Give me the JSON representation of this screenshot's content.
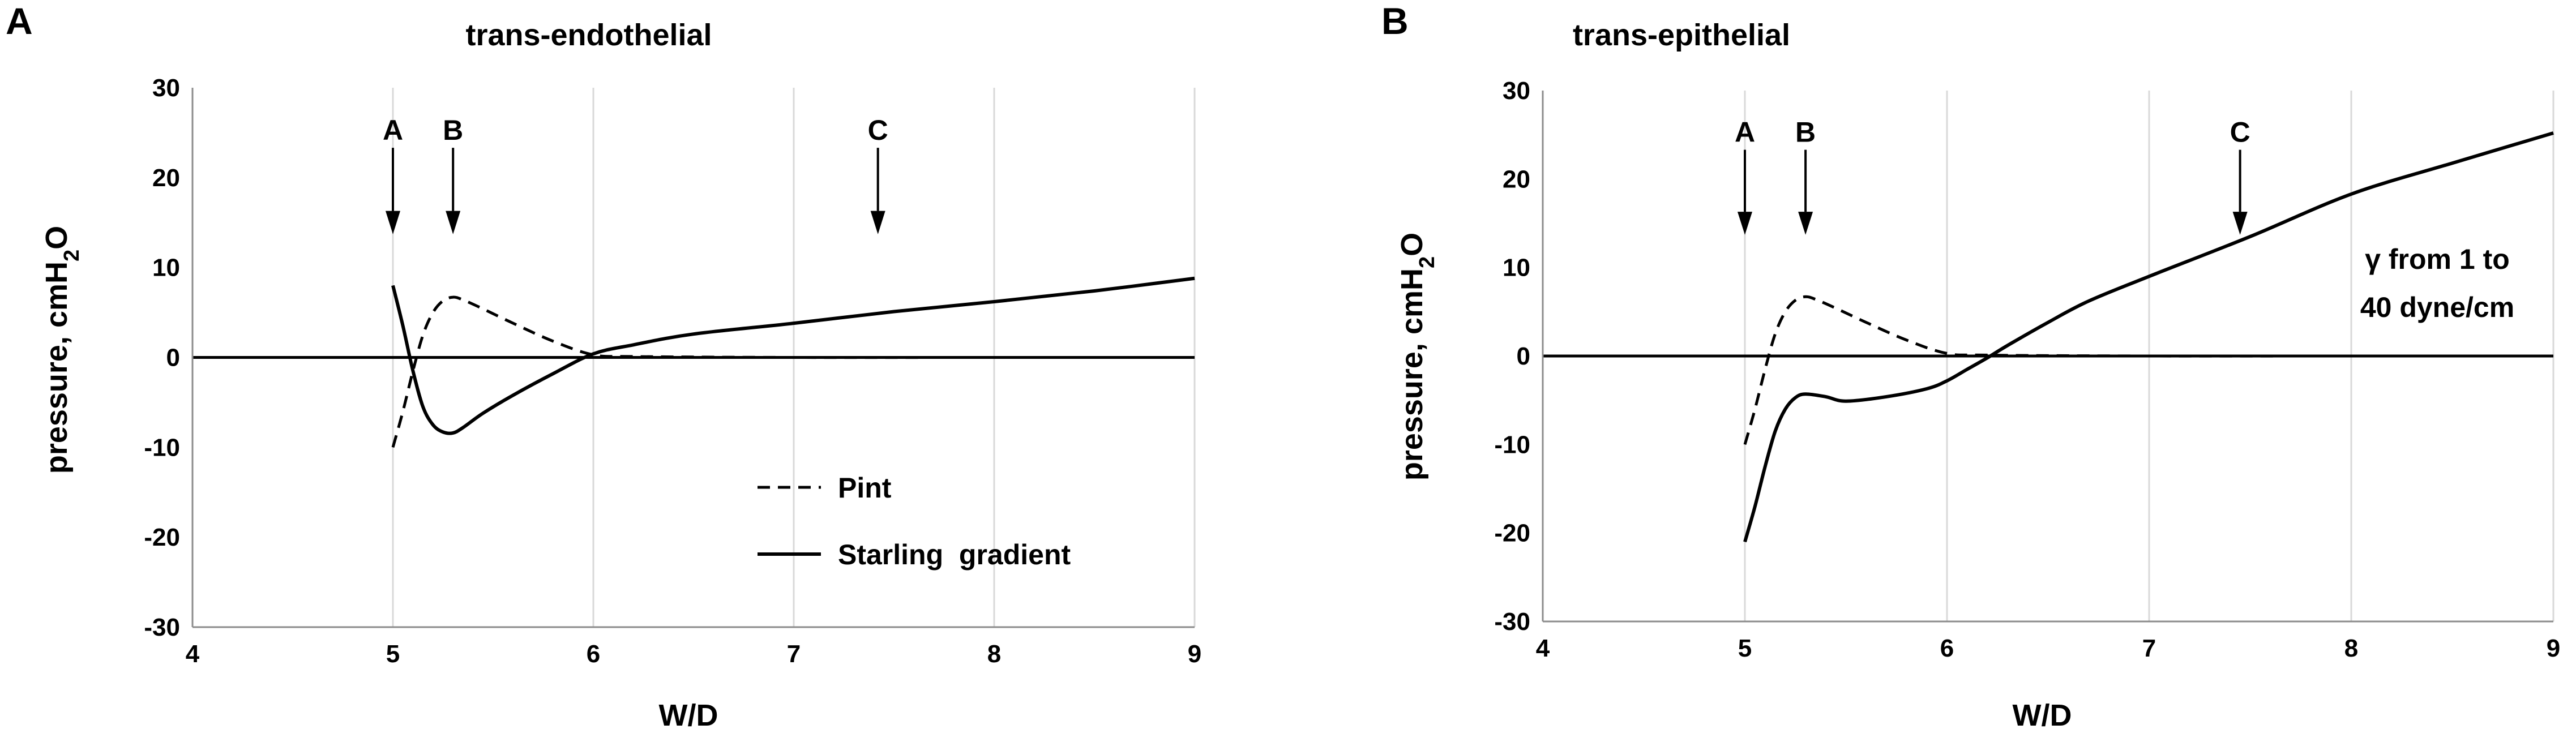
{
  "chart_data": [
    {
      "type": "line",
      "panel_label": "A",
      "title": "trans-endothelial",
      "xlabel": "W/D",
      "ylabel": "pressure, cmH2O",
      "xlim": [
        4,
        9
      ],
      "ylim": [
        -30,
        30
      ],
      "x_ticks": [
        4,
        5,
        6,
        7,
        8,
        9
      ],
      "y_ticks": [
        -30,
        -20,
        -10,
        0,
        10,
        20,
        30
      ],
      "grid": "vertical",
      "legend_placement": "bottom-right",
      "markers": [
        {
          "label": "A",
          "x": 5.0
        },
        {
          "label": "B",
          "x": 5.3
        },
        {
          "label": "C",
          "x": 7.42
        }
      ],
      "series": [
        {
          "name": "Pint",
          "style": "dashed",
          "x": [
            5.0,
            5.05,
            5.1,
            5.15,
            5.2,
            5.25,
            5.3,
            5.35,
            5.45,
            5.6,
            5.8,
            6.0,
            6.2,
            7.0,
            8.0,
            9.0
          ],
          "y": [
            -10.0,
            -6.0,
            -1.5,
            2.5,
            5.0,
            6.3,
            6.7,
            6.4,
            5.4,
            3.8,
            1.8,
            0.3,
            0.1,
            0.0,
            0.0,
            0.0
          ]
        },
        {
          "name": "Starling  gradient",
          "style": "solid",
          "x": [
            5.0,
            5.05,
            5.1,
            5.15,
            5.2,
            5.25,
            5.3,
            5.35,
            5.45,
            5.6,
            5.8,
            6.0,
            6.2,
            6.5,
            7.0,
            7.5,
            8.0,
            8.5,
            9.0
          ],
          "y": [
            8.0,
            3.5,
            -1.5,
            -5.5,
            -7.5,
            -8.3,
            -8.4,
            -7.8,
            -6.2,
            -4.2,
            -1.8,
            0.4,
            1.4,
            2.6,
            3.8,
            5.1,
            6.2,
            7.4,
            8.8
          ]
        }
      ]
    },
    {
      "type": "line",
      "panel_label": "B",
      "title": "trans-epithelial",
      "xlabel": "W/D",
      "ylabel": "pressure, cmH2O",
      "xlim": [
        4,
        9
      ],
      "ylim": [
        -30,
        30
      ],
      "x_ticks": [
        4,
        5,
        6,
        7,
        8,
        9
      ],
      "y_ticks": [
        -30,
        -20,
        -10,
        0,
        10,
        20,
        30
      ],
      "grid": "vertical",
      "annotation": [
        "γ from 1 to",
        "40 dyne/cm"
      ],
      "markers": [
        {
          "label": "A",
          "x": 5.0
        },
        {
          "label": "B",
          "x": 5.3
        },
        {
          "label": "C",
          "x": 7.45
        }
      ],
      "series": [
        {
          "style": "dashed",
          "x": [
            5.0,
            5.05,
            5.1,
            5.15,
            5.2,
            5.25,
            5.3,
            5.35,
            5.45,
            5.6,
            5.8,
            6.0,
            6.2,
            7.0,
            8.0,
            9.0
          ],
          "y": [
            -10.0,
            -6.0,
            -1.5,
            2.5,
            5.0,
            6.3,
            6.7,
            6.4,
            5.4,
            3.8,
            1.8,
            0.3,
            0.1,
            0.0,
            0.0,
            0.0
          ]
        },
        {
          "style": "solid",
          "x": [
            5.0,
            5.05,
            5.1,
            5.15,
            5.2,
            5.25,
            5.3,
            5.4,
            5.5,
            5.7,
            5.9,
            6.0,
            6.1,
            6.2,
            6.3,
            6.5,
            6.7,
            7.0,
            7.5,
            8.0,
            8.5,
            9.0
          ],
          "y": [
            -21.0,
            -17.0,
            -12.5,
            -8.5,
            -6.0,
            -4.7,
            -4.3,
            -4.6,
            -5.1,
            -4.6,
            -3.7,
            -2.8,
            -1.5,
            -0.2,
            1.2,
            3.8,
            6.2,
            9.0,
            13.5,
            18.3,
            21.8,
            25.2
          ]
        }
      ]
    }
  ]
}
